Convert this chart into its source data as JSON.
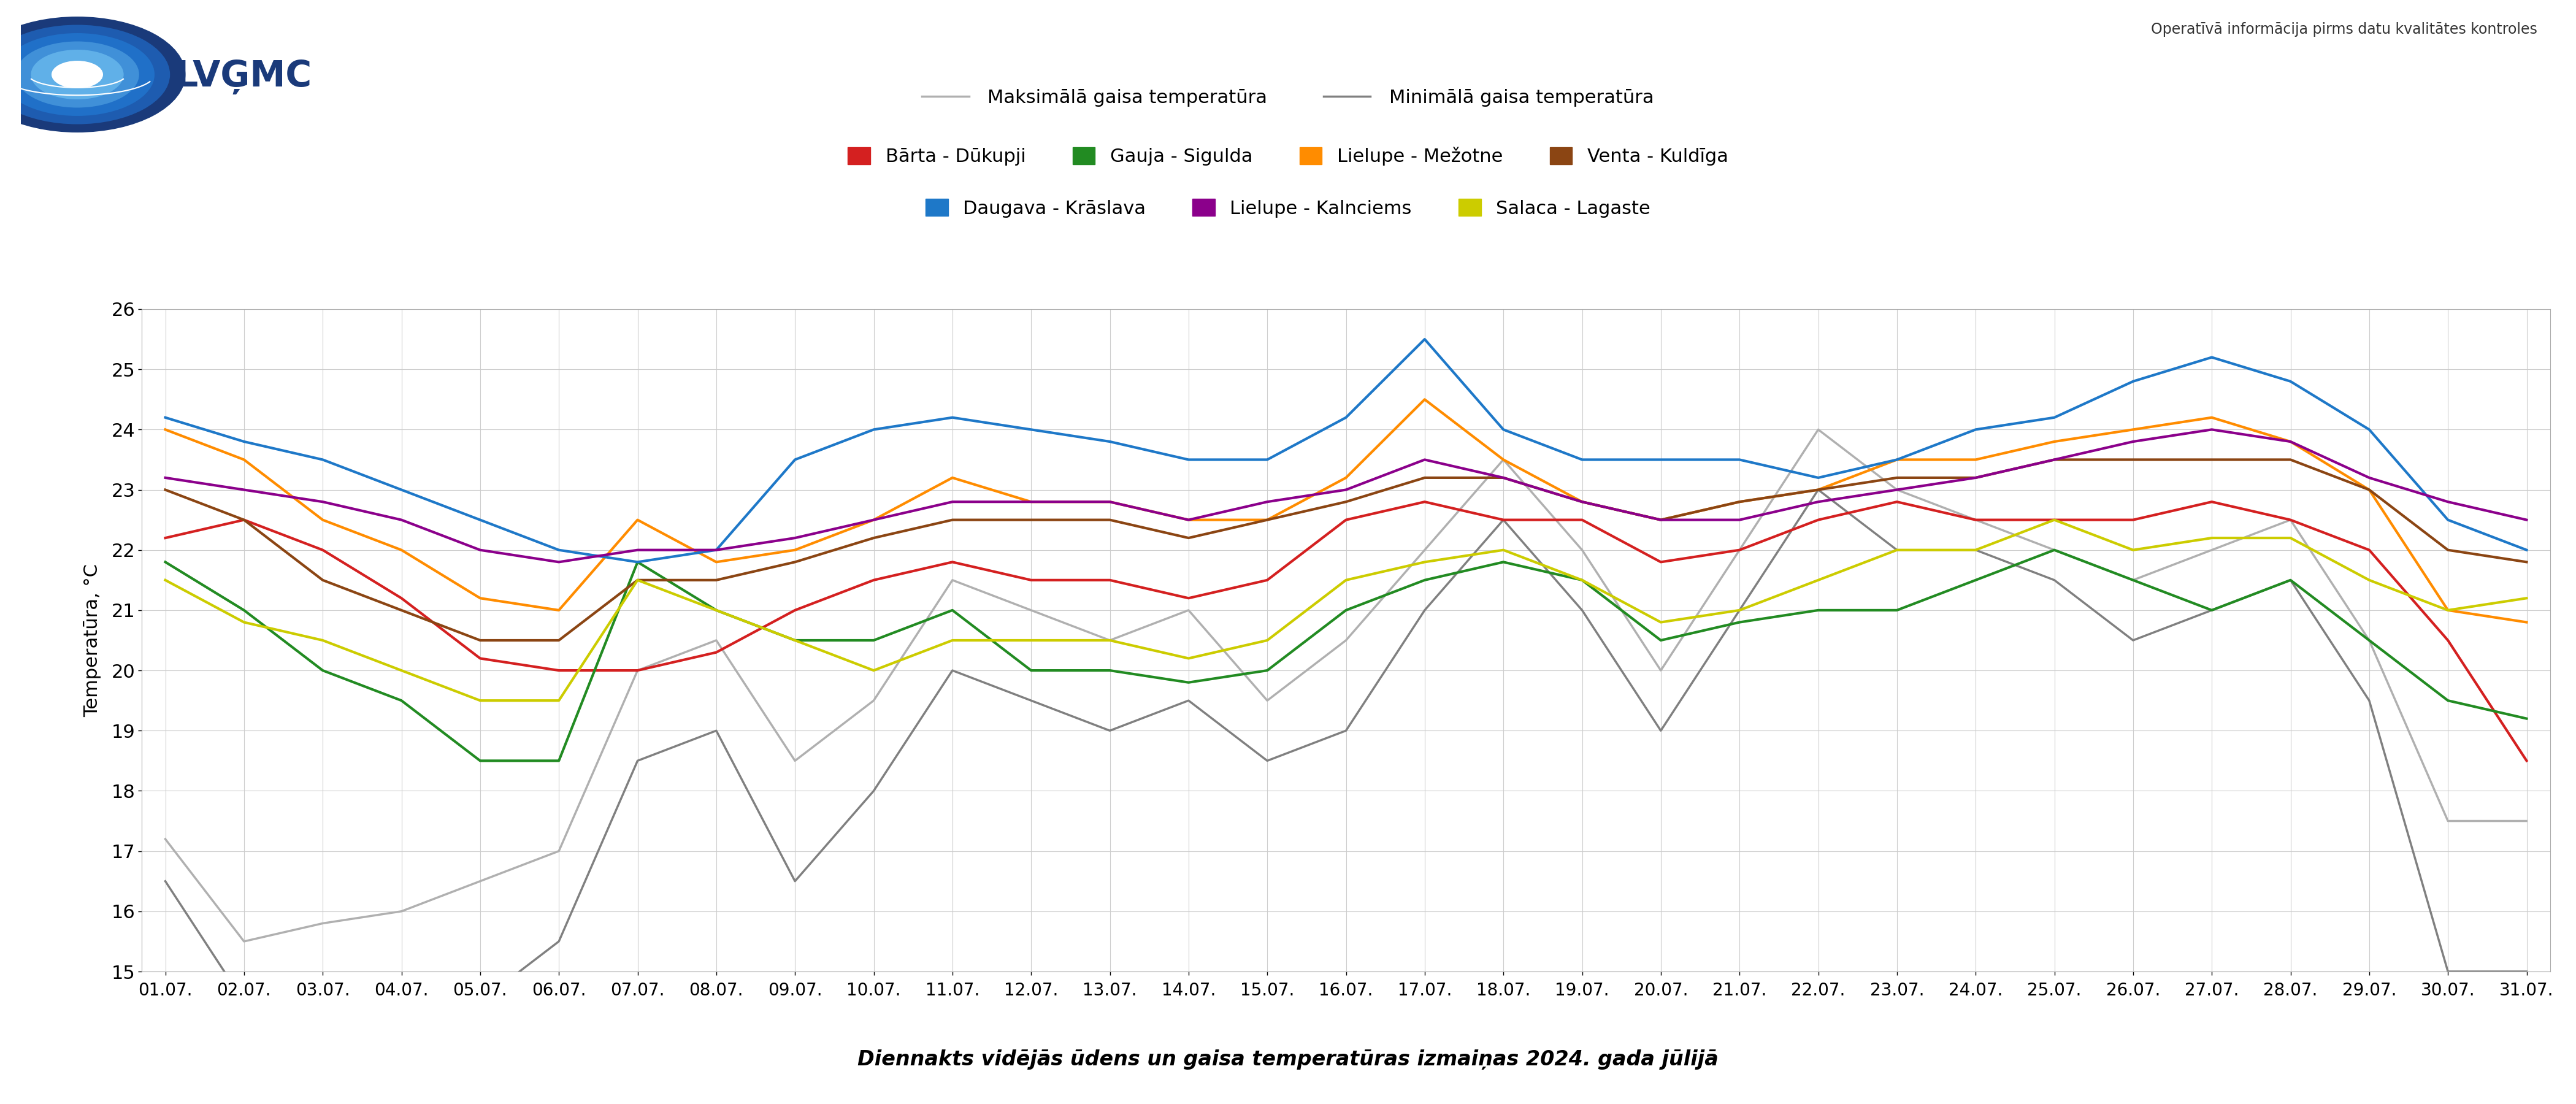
{
  "title": "Diennakts vidējās ūdens un gaisa temperatūras izmaiņas 2024. gada jūlijā",
  "ylabel": "Temperatūra, °C",
  "operativa_text": "Operatīvā informācija pirms datu kvalitātes kontroles",
  "dates": [
    "01.07.",
    "02.07.",
    "03.07.",
    "04.07.",
    "05.07.",
    "06.07.",
    "07.07.",
    "08.07.",
    "09.07.",
    "10.07.",
    "11.07.",
    "12.07.",
    "13.07.",
    "14.07.",
    "15.07.",
    "16.07.",
    "17.07.",
    "18.07.",
    "19.07.",
    "20.07.",
    "21.07.",
    "22.07.",
    "23.07.",
    "24.07.",
    "25.07.",
    "26.07.",
    "27.07.",
    "28.07.",
    "29.07.",
    "30.07.",
    "31.07."
  ],
  "ylim": [
    15,
    26
  ],
  "yticks": [
    15,
    16,
    17,
    18,
    19,
    20,
    21,
    22,
    23,
    24,
    25,
    26
  ],
  "series": {
    "Bārta - Dūkupji": {
      "color": "#d42020",
      "data": [
        22.2,
        22.5,
        22.0,
        21.2,
        20.2,
        20.0,
        20.0,
        20.3,
        21.0,
        21.5,
        21.8,
        21.5,
        21.5,
        21.2,
        21.5,
        22.5,
        22.8,
        22.5,
        22.5,
        21.8,
        22.0,
        22.5,
        22.8,
        22.5,
        22.5,
        22.5,
        22.8,
        22.5,
        22.0,
        20.5,
        18.5
      ]
    },
    "Gauja - Sigulda": {
      "color": "#228b22",
      "data": [
        21.8,
        21.0,
        20.0,
        19.5,
        18.5,
        18.5,
        21.8,
        21.0,
        20.5,
        20.5,
        21.0,
        20.0,
        20.0,
        19.8,
        20.0,
        21.0,
        21.5,
        21.8,
        21.5,
        20.5,
        20.8,
        21.0,
        21.0,
        21.5,
        22.0,
        21.5,
        21.0,
        21.5,
        20.5,
        19.5,
        19.2
      ]
    },
    "Lielupe - Mežotne": {
      "color": "#ff8c00",
      "data": [
        24.0,
        23.5,
        22.5,
        22.0,
        21.2,
        21.0,
        22.5,
        21.8,
        22.0,
        22.5,
        23.2,
        22.8,
        22.8,
        22.5,
        22.5,
        23.2,
        24.5,
        23.5,
        22.8,
        22.5,
        22.8,
        23.0,
        23.5,
        23.5,
        23.8,
        24.0,
        24.2,
        23.8,
        23.0,
        21.0,
        20.8
      ]
    },
    "Venta - Kuldīga": {
      "color": "#8b4513",
      "data": [
        23.0,
        22.5,
        21.5,
        21.0,
        20.5,
        20.5,
        21.5,
        21.5,
        21.8,
        22.2,
        22.5,
        22.5,
        22.5,
        22.2,
        22.5,
        22.8,
        23.2,
        23.2,
        22.8,
        22.5,
        22.8,
        23.0,
        23.2,
        23.2,
        23.5,
        23.5,
        23.5,
        23.5,
        23.0,
        22.0,
        21.8
      ]
    },
    "Daugava - Krāslava": {
      "color": "#1e78c8",
      "data": [
        24.2,
        23.8,
        23.5,
        23.0,
        22.5,
        22.0,
        21.8,
        22.0,
        23.5,
        24.0,
        24.2,
        24.0,
        23.8,
        23.5,
        23.5,
        24.2,
        25.5,
        24.0,
        23.5,
        23.5,
        23.5,
        23.2,
        23.5,
        24.0,
        24.2,
        24.8,
        25.2,
        24.8,
        24.0,
        22.5,
        22.0
      ]
    },
    "Lielupe - Kalnciems": {
      "color": "#8b008b",
      "data": [
        23.2,
        23.0,
        22.8,
        22.5,
        22.0,
        21.8,
        22.0,
        22.0,
        22.2,
        22.5,
        22.8,
        22.8,
        22.8,
        22.5,
        22.8,
        23.0,
        23.5,
        23.2,
        22.8,
        22.5,
        22.5,
        22.8,
        23.0,
        23.2,
        23.5,
        23.8,
        24.0,
        23.8,
        23.2,
        22.8,
        22.5
      ]
    },
    "Salaca - Lagaste": {
      "color": "#cccc00",
      "data": [
        21.5,
        20.8,
        20.5,
        20.0,
        19.5,
        19.5,
        21.5,
        21.0,
        20.5,
        20.0,
        20.5,
        20.5,
        20.5,
        20.2,
        20.5,
        21.5,
        21.8,
        22.0,
        21.5,
        20.8,
        21.0,
        21.5,
        22.0,
        22.0,
        22.5,
        22.0,
        22.2,
        22.2,
        21.5,
        21.0,
        21.2
      ]
    }
  },
  "max_air_temp": {
    "color": "#b0b0b0",
    "data": [
      17.2,
      15.5,
      15.8,
      16.0,
      16.5,
      17.0,
      20.0,
      20.5,
      18.5,
      19.5,
      21.5,
      21.0,
      20.5,
      21.0,
      19.5,
      20.5,
      22.0,
      23.5,
      22.0,
      20.0,
      22.0,
      24.0,
      23.0,
      22.5,
      22.0,
      21.5,
      22.0,
      22.5,
      20.5,
      17.5,
      17.5
    ]
  },
  "min_air_temp": {
    "color": "#808080",
    "data": [
      16.5,
      14.5,
      14.5,
      14.5,
      14.5,
      15.5,
      18.5,
      19.0,
      16.5,
      18.0,
      20.0,
      19.5,
      19.0,
      19.5,
      18.5,
      19.0,
      21.0,
      22.5,
      21.0,
      19.0,
      21.0,
      23.0,
      22.0,
      22.0,
      21.5,
      20.5,
      21.0,
      21.5,
      19.5,
      15.0,
      15.0
    ]
  },
  "legend_row1": [
    "Bārta - Dūkupji",
    "Gauja - Sigulda",
    "Lielupe - Mežotne",
    "Venta - Kuldīga"
  ],
  "legend_row2": [
    "Daugava - Krāslava",
    "Lielupe - Kalnciems",
    "Salaca - Lagaste"
  ],
  "background_color": "#ffffff",
  "grid_color": "#cccccc"
}
